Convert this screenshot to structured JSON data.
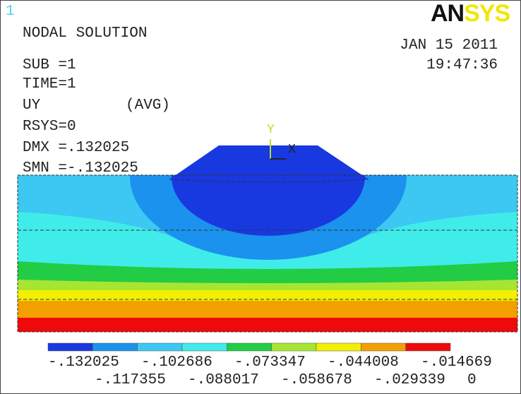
{
  "window_number": "1",
  "logo": {
    "part1": "AN",
    "part2": "SYS"
  },
  "header": {
    "title": "NODAL SOLUTION",
    "lines": [
      "SUB =1",
      "TIME=1",
      "UY",
      "RSYS=0",
      "DMX =.132025",
      "SMN =-.132025"
    ],
    "avg": "(AVG)",
    "date": "JAN 15 2011",
    "time": "19:47:36"
  },
  "triad": {
    "y": "Y",
    "x": "X"
  },
  "legend": {
    "labels": [
      "-.132025",
      "-.117355",
      "-.102686",
      "-.088017",
      "-.073347",
      "-.058678",
      "-.044008",
      "-.029339",
      "-.014669",
      "0"
    ],
    "colors": [
      "#1838e0",
      "#1a92ee",
      "#3cc8f2",
      "#40ecea",
      "#22cc44",
      "#a6e632",
      "#f2f000",
      "#f2a000",
      "#ee0a0a"
    ]
  }
}
